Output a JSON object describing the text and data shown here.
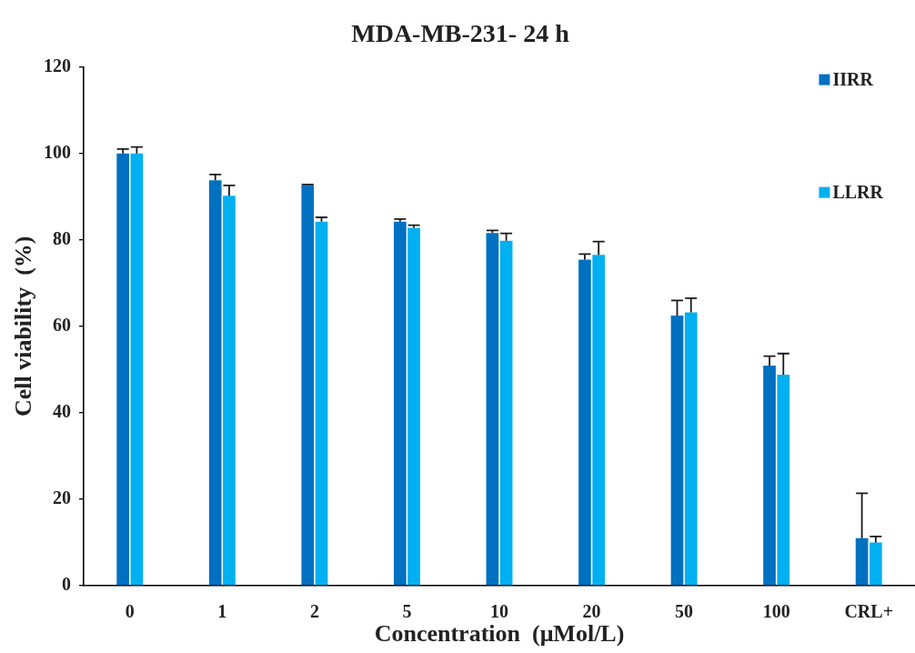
{
  "chart_data": {
    "type": "bar",
    "title": "MDA-MB-231- 24 h",
    "xlabel": "Concentration  (μMol/L)",
    "ylabel": "Cell viability  (%)",
    "categories": [
      "0",
      "1",
      "2",
      "5",
      "10",
      "20",
      "50",
      "100",
      "CRL+"
    ],
    "series": [
      {
        "name": "IIRR",
        "color": "#0070c0",
        "values": [
          100,
          93.8,
          92.6,
          84.2,
          81.6,
          75.4,
          62.5,
          50.9,
          11.0
        ],
        "errors": [
          [
            100,
            101
          ],
          [
            93.8,
            95.1
          ],
          [
            92.6,
            92.8
          ],
          [
            84.2,
            84.8
          ],
          [
            81.6,
            82.2
          ],
          [
            75.4,
            76.7
          ],
          [
            62.5,
            66.0
          ],
          [
            50.9,
            53.1
          ],
          [
            11.0,
            21.4
          ]
        ]
      },
      {
        "name": "LLRR",
        "color": "#00b0f0",
        "values": [
          100,
          90.2,
          84.2,
          82.8,
          79.8,
          76.5,
          63.2,
          48.8,
          10.0
        ],
        "errors": [
          [
            100,
            101.5
          ],
          [
            90.2,
            92.6
          ],
          [
            84.2,
            85.2
          ],
          [
            82.8,
            83.4
          ],
          [
            79.8,
            81.5
          ],
          [
            76.5,
            79.6
          ],
          [
            63.2,
            66.5
          ],
          [
            48.8,
            53.7
          ],
          [
            10.0,
            11.4
          ]
        ]
      }
    ],
    "ylim": [
      0,
      120
    ],
    "yticks": [
      0,
      20,
      40,
      60,
      80,
      100,
      120
    ],
    "legend": "top right"
  }
}
